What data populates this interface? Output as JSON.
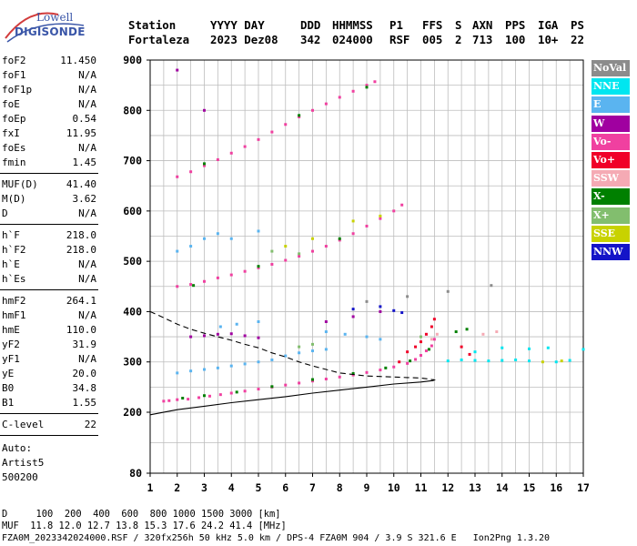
{
  "logo": {
    "line1": "Lowell",
    "line2": "DIGISONDE"
  },
  "header": {
    "station_label": "Station",
    "station_value": "Fortaleza",
    "date_label": "YYYY DAY",
    "date_value": "2023 Dez08",
    "doy_label": "DDD",
    "doy_value": "342",
    "time_label": "HHMMSS",
    "time_value": "024000",
    "p1_label": "P1",
    "p1_value": "RSF",
    "ffs_label": "FFS",
    "ffs_value": "005",
    "s_label": "S",
    "s_value": "2",
    "axn_label": "AXN",
    "axn_value": "713",
    "pps_label": "PPS",
    "pps_value": "100",
    "iga_label": "IGA",
    "iga_value": "10+",
    "ps_label": "PS",
    "ps_value": "22"
  },
  "params": {
    "group1": [
      {
        "name": "foF2",
        "value": "11.450"
      },
      {
        "name": "foF1",
        "value": "N/A"
      },
      {
        "name": "foF1p",
        "value": "N/A"
      },
      {
        "name": "foE",
        "value": "N/A"
      },
      {
        "name": "foEp",
        "value": "0.54"
      },
      {
        "name": "fxI",
        "value": "11.95"
      },
      {
        "name": "foEs",
        "value": "N/A"
      },
      {
        "name": "fmin",
        "value": "1.45"
      }
    ],
    "group2": [
      {
        "name": "MUF(D)",
        "value": "41.40"
      },
      {
        "name": "M(D)",
        "value": "3.62"
      },
      {
        "name": "D",
        "value": "N/A"
      }
    ],
    "group3": [
      {
        "name": "h`F",
        "value": "218.0"
      },
      {
        "name": "h`F2",
        "value": "218.0"
      },
      {
        "name": "h`E",
        "value": "N/A"
      },
      {
        "name": "h`Es",
        "value": "N/A"
      }
    ],
    "group4": [
      {
        "name": "hmF2",
        "value": "264.1"
      },
      {
        "name": "hmF1",
        "value": "N/A"
      },
      {
        "name": "hmE",
        "value": "110.0"
      },
      {
        "name": "yF2",
        "value": "31.9"
      },
      {
        "name": "yF1",
        "value": "N/A"
      },
      {
        "name": "yE",
        "value": "20.0"
      },
      {
        "name": "B0",
        "value": "34.8"
      },
      {
        "name": "B1",
        "value": "1.55"
      }
    ],
    "group5": [
      {
        "name": "C-level",
        "value": "22"
      }
    ],
    "auto_lines": [
      "Auto:",
      "Artist5",
      "500200"
    ]
  },
  "legend": [
    {
      "label": "NoVal",
      "bg": "#8c8c8c",
      "fg": "#ffffff"
    },
    {
      "label": "NNE",
      "bg": "#00e6f0",
      "fg": "#ffffff"
    },
    {
      "label": "E",
      "bg": "#5ab4f0",
      "fg": "#ffffff"
    },
    {
      "label": "W",
      "bg": "#a000a0",
      "fg": "#ffffff"
    },
    {
      "label": "Vo-",
      "bg": "#f040a0",
      "fg": "#ffffff"
    },
    {
      "label": "Vo+",
      "bg": "#f00028",
      "fg": "#ffffff"
    },
    {
      "label": "SSW",
      "bg": "#f5aab4",
      "fg": "#ffffff"
    },
    {
      "label": "X-",
      "bg": "#008000",
      "fg": "#ffffff"
    },
    {
      "label": "X+",
      "bg": "#82be6e",
      "fg": "#ffffff"
    },
    {
      "label": "SSE",
      "bg": "#c8d200",
      "fg": "#ffffff"
    },
    {
      "label": "NNW",
      "bg": "#1414c8",
      "fg": "#ffffff"
    }
  ],
  "footer": {
    "line1": "D     100  200  400  600  800 1000 1500 3000 [km]",
    "line2": "MUF  11.8 12.0 12.7 13.8 15.3 17.6 24.2 41.4 [MHz]",
    "line3": "FZA0M_2023342024000.RSF / 320fx256h 50 kHz 5.0 km / DPS-4 FZA0M 904 / 3.9 S 321.6 E   Ion2Png 1.3.20"
  },
  "chart_data": {
    "type": "scatter",
    "title": "",
    "xlabel": "",
    "ylabel": "",
    "xlim": [
      1,
      17
    ],
    "ylim_km": [
      80,
      900
    ],
    "x_ticks": [
      1,
      2,
      3,
      4,
      5,
      6,
      7,
      8,
      9,
      10,
      11,
      12,
      13,
      14,
      15,
      16,
      17
    ],
    "y_ticks": [
      80,
      200,
      300,
      400,
      500,
      600,
      700,
      800,
      900
    ],
    "grid": true,
    "legend_position": "right",
    "series": [
      {
        "name": "Vo-",
        "color": "#f040a0",
        "points": [
          [
            1.5,
            222
          ],
          [
            1.7,
            223
          ],
          [
            2.0,
            225
          ],
          [
            2.4,
            226
          ],
          [
            2.8,
            229
          ],
          [
            3.2,
            232
          ],
          [
            3.6,
            235
          ],
          [
            4.0,
            238
          ],
          [
            4.5,
            242
          ],
          [
            5.0,
            246
          ],
          [
            5.5,
            250
          ],
          [
            6.0,
            254
          ],
          [
            6.5,
            258
          ],
          [
            7.0,
            262
          ],
          [
            7.5,
            266
          ],
          [
            8.0,
            270
          ],
          [
            8.5,
            274
          ],
          [
            9.0,
            279
          ],
          [
            9.5,
            284
          ],
          [
            10.0,
            290
          ],
          [
            10.5,
            297
          ],
          [
            10.8,
            305
          ],
          [
            11.0,
            313
          ],
          [
            11.2,
            322
          ],
          [
            11.4,
            332
          ],
          [
            11.5,
            345
          ],
          [
            2.0,
            450
          ],
          [
            2.5,
            454
          ],
          [
            3.0,
            460
          ],
          [
            3.5,
            467
          ],
          [
            4.0,
            473
          ],
          [
            4.5,
            480
          ],
          [
            5.0,
            487
          ],
          [
            5.5,
            494
          ],
          [
            6.0,
            502
          ],
          [
            6.5,
            510
          ],
          [
            7.0,
            520
          ],
          [
            7.5,
            530
          ],
          [
            8.0,
            542
          ],
          [
            8.5,
            555
          ],
          [
            9.0,
            570
          ],
          [
            9.5,
            585
          ],
          [
            10.0,
            600
          ],
          [
            10.3,
            612
          ],
          [
            2.0,
            668
          ],
          [
            2.5,
            678
          ],
          [
            3.0,
            690
          ],
          [
            3.5,
            702
          ],
          [
            4.0,
            715
          ],
          [
            4.5,
            728
          ],
          [
            5.0,
            742
          ],
          [
            5.5,
            757
          ],
          [
            6.0,
            772
          ],
          [
            6.5,
            787
          ],
          [
            7.0,
            800
          ],
          [
            7.5,
            813
          ],
          [
            8.0,
            826
          ],
          [
            8.5,
            838
          ],
          [
            9.0,
            850
          ],
          [
            9.3,
            857
          ]
        ]
      },
      {
        "name": "Vo+",
        "color": "#f00028",
        "points": [
          [
            10.5,
            320
          ],
          [
            10.8,
            330
          ],
          [
            11.0,
            340
          ],
          [
            11.2,
            355
          ],
          [
            11.4,
            370
          ],
          [
            11.5,
            385
          ],
          [
            10.2,
            300
          ],
          [
            12.5,
            330
          ],
          [
            12.8,
            315
          ]
        ]
      },
      {
        "name": "X-",
        "color": "#008000",
        "points": [
          [
            2.2,
            228
          ],
          [
            3.0,
            233
          ],
          [
            4.2,
            240
          ],
          [
            5.5,
            251
          ],
          [
            7.0,
            265
          ],
          [
            8.5,
            277
          ],
          [
            9.7,
            288
          ],
          [
            10.6,
            302
          ],
          [
            11.3,
            325
          ],
          [
            2.6,
            452
          ],
          [
            5.0,
            490
          ],
          [
            8.0,
            545
          ],
          [
            3.0,
            694
          ],
          [
            6.5,
            790
          ],
          [
            9.0,
            846
          ],
          [
            12.3,
            360
          ],
          [
            12.7,
            365
          ]
        ]
      },
      {
        "name": "E",
        "color": "#5ab4f0",
        "points": [
          [
            2.0,
            278
          ],
          [
            2.5,
            282
          ],
          [
            3.0,
            285
          ],
          [
            3.5,
            288
          ],
          [
            4.0,
            292
          ],
          [
            4.5,
            296
          ],
          [
            5.0,
            300
          ],
          [
            5.5,
            304
          ],
          [
            6.0,
            312
          ],
          [
            6.5,
            318
          ],
          [
            7.0,
            322
          ],
          [
            7.5,
            325
          ],
          [
            2.0,
            520
          ],
          [
            2.5,
            530
          ],
          [
            3.0,
            545
          ],
          [
            3.5,
            555
          ],
          [
            4.0,
            545
          ],
          [
            5.0,
            560
          ],
          [
            3.6,
            370
          ],
          [
            4.2,
            375
          ],
          [
            5.0,
            380
          ],
          [
            7.5,
            360
          ],
          [
            8.2,
            355
          ],
          [
            9.0,
            350
          ],
          [
            9.5,
            345
          ]
        ]
      },
      {
        "name": "NNE",
        "color": "#00e6f0",
        "points": [
          [
            12.0,
            302
          ],
          [
            12.5,
            304
          ],
          [
            13.0,
            303
          ],
          [
            13.5,
            302
          ],
          [
            14.0,
            303
          ],
          [
            14.5,
            304
          ],
          [
            15.0,
            302
          ],
          [
            13.0,
            320
          ],
          [
            14.0,
            328
          ],
          [
            15.0,
            326
          ],
          [
            15.7,
            328
          ],
          [
            16.0,
            300
          ],
          [
            16.5,
            303
          ],
          [
            17.0,
            325
          ]
        ]
      },
      {
        "name": "W",
        "color": "#a000a0",
        "points": [
          [
            2.5,
            350
          ],
          [
            3.0,
            352
          ],
          [
            3.5,
            355
          ],
          [
            4.0,
            356
          ],
          [
            4.5,
            352
          ],
          [
            5.0,
            348
          ],
          [
            7.5,
            380
          ],
          [
            8.5,
            390
          ],
          [
            9.5,
            400
          ],
          [
            3.0,
            800
          ],
          [
            2.0,
            880
          ]
        ]
      },
      {
        "name": "NNW",
        "color": "#1414c8",
        "points": [
          [
            8.5,
            405
          ],
          [
            9.5,
            410
          ],
          [
            10.0,
            402
          ],
          [
            10.3,
            398
          ]
        ]
      },
      {
        "name": "SSE",
        "color": "#c8d200",
        "points": [
          [
            6.0,
            530
          ],
          [
            7.0,
            545
          ],
          [
            8.5,
            580
          ],
          [
            9.5,
            590
          ],
          [
            15.5,
            300
          ],
          [
            16.2,
            302
          ]
        ]
      },
      {
        "name": "X+",
        "color": "#82be6e",
        "points": [
          [
            6.5,
            330
          ],
          [
            7.0,
            335
          ],
          [
            11.0,
            350
          ],
          [
            5.5,
            520
          ],
          [
            6.5,
            515
          ]
        ]
      },
      {
        "name": "SSW",
        "color": "#f5aab4",
        "points": [
          [
            11.4,
            345
          ],
          [
            11.6,
            355
          ],
          [
            13.3,
            355
          ],
          [
            13.8,
            360
          ]
        ]
      },
      {
        "name": "NoVal",
        "color": "#8c8c8c",
        "points": [
          [
            9.0,
            420
          ],
          [
            10.5,
            430
          ],
          [
            12.0,
            440
          ],
          [
            13.6,
            452
          ]
        ]
      }
    ],
    "profile_curve": {
      "style": "solid",
      "points": [
        [
          1,
          195
        ],
        [
          2,
          205
        ],
        [
          3,
          212
        ],
        [
          4,
          219
        ],
        [
          5,
          225
        ],
        [
          6,
          231
        ],
        [
          7,
          238
        ],
        [
          8,
          244
        ],
        [
          9,
          250
        ],
        [
          10,
          256
        ],
        [
          11,
          260
        ],
        [
          11.45,
          263
        ],
        [
          11.5,
          264
        ],
        [
          11.45,
          265
        ]
      ]
    },
    "model_curve": {
      "style": "dashed",
      "points": [
        [
          1,
          400
        ],
        [
          1.5,
          388
        ],
        [
          2,
          375
        ],
        [
          2.5,
          365
        ],
        [
          3,
          357
        ],
        [
          3.5,
          350
        ],
        [
          4,
          343
        ],
        [
          4.5,
          335
        ],
        [
          5,
          328
        ],
        [
          5.5,
          318
        ],
        [
          6,
          310
        ],
        [
          6.5,
          300
        ],
        [
          7,
          292
        ],
        [
          7.5,
          285
        ],
        [
          8,
          278
        ],
        [
          8.5,
          275
        ],
        [
          9,
          272
        ],
        [
          9.5,
          271
        ],
        [
          10,
          270
        ],
        [
          10.5,
          269
        ],
        [
          11,
          268
        ],
        [
          11.3,
          266
        ],
        [
          11.5,
          264
        ]
      ]
    }
  }
}
